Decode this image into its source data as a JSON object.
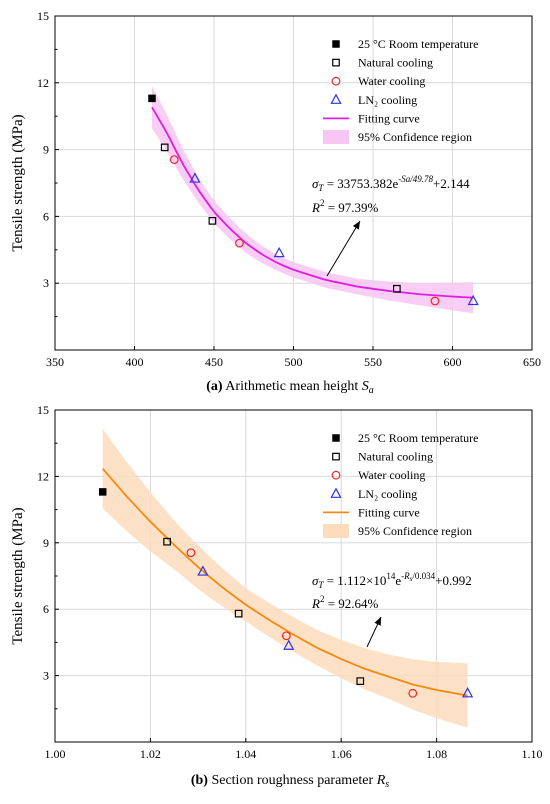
{
  "colors": {
    "room": "#000000",
    "natural": "#000000",
    "water": "#e8272a",
    "ln2": "#2b35e0",
    "fit_a": "#e11de3",
    "band_a": "#f7c6f2",
    "fit_b": "#f28a12",
    "band_b": "#fbdcbc",
    "grid": "#d9d9d9"
  },
  "chart_data": [
    {
      "type": "scatter",
      "panel_label": "(a)",
      "caption": "Arithmetic mean height",
      "caption_symbol": "S",
      "caption_subscript": "a",
      "ylabel": "Tensile strength (MPa)",
      "xlabel": "",
      "xlim": [
        350,
        650
      ],
      "ylim": [
        0,
        15
      ],
      "xticks": [
        350,
        400,
        450,
        500,
        550,
        600,
        650
      ],
      "yticks": [
        3,
        6,
        9,
        12,
        15
      ],
      "grid": true,
      "legend_position": "top-right",
      "series": [
        {
          "name": "25 °C Room temperature",
          "marker": "filled-square",
          "points": [
            [
              411,
              11.3
            ]
          ]
        },
        {
          "name": "Natural cooling",
          "marker": "open-square",
          "points": [
            [
              419,
              9.1
            ],
            [
              449,
              5.8
            ],
            [
              565,
              2.75
            ]
          ]
        },
        {
          "name": "Water cooling",
          "marker": "open-circle",
          "points": [
            [
              425,
              8.55
            ],
            [
              466,
              4.8
            ],
            [
              589,
              2.2
            ]
          ]
        },
        {
          "name": "LN₂ cooling",
          "marker": "open-triangle",
          "points": [
            [
              438,
              7.7
            ],
            [
              491,
              4.35
            ],
            [
              613,
              2.2
            ]
          ]
        }
      ],
      "fit": {
        "name": "Fitting curve",
        "band_name": "95% Confidence region",
        "x_range": [
          411,
          613
        ],
        "points": [
          [
            411,
            10.9
          ],
          [
            420,
            9.8
          ],
          [
            430,
            8.4
          ],
          [
            440,
            7.2
          ],
          [
            450,
            6.2
          ],
          [
            460,
            5.45
          ],
          [
            470,
            4.8
          ],
          [
            480,
            4.3
          ],
          [
            490,
            3.9
          ],
          [
            500,
            3.6
          ],
          [
            520,
            3.15
          ],
          [
            540,
            2.85
          ],
          [
            560,
            2.65
          ],
          [
            580,
            2.5
          ],
          [
            600,
            2.4
          ],
          [
            613,
            2.35
          ]
        ],
        "band_halfwidth": [
          [
            411,
            0.95
          ],
          [
            440,
            0.55
          ],
          [
            490,
            0.35
          ],
          [
            540,
            0.35
          ],
          [
            580,
            0.5
          ],
          [
            613,
            0.7
          ]
        ],
        "equation_text": "σ",
        "equation_sub": "T",
        "equation_rest": " = 33753.382e",
        "equation_sup": "-Sa/49.78",
        "equation_tail": "+2.144",
        "r2_label": "R",
        "r2_sup": "2",
        "r2_value": " = 97.39%"
      }
    },
    {
      "type": "scatter",
      "panel_label": "(b)",
      "caption": "Section roughness parameter",
      "caption_symbol": "R",
      "caption_subscript": "s",
      "ylabel": "Tensile strength (MPa)",
      "xlabel": "",
      "xlim": [
        1.0,
        1.1
      ],
      "ylim": [
        0,
        15
      ],
      "xticks": [
        "1.00",
        "1.02",
        "1.04",
        "1.06",
        "1.08",
        "1.10"
      ],
      "yticks": [
        3,
        6,
        9,
        12,
        15
      ],
      "grid": true,
      "legend_position": "top-right",
      "series": [
        {
          "name": "25 °C Room temperature",
          "marker": "filled-square",
          "points": [
            [
              1.01,
              11.3
            ]
          ]
        },
        {
          "name": "Natural cooling",
          "marker": "open-square",
          "points": [
            [
              1.0235,
              9.05
            ],
            [
              1.0385,
              5.8
            ],
            [
              1.064,
              2.75
            ]
          ]
        },
        {
          "name": "Water cooling",
          "marker": "open-circle",
          "points": [
            [
              1.0285,
              8.55
            ],
            [
              1.0485,
              4.8
            ],
            [
              1.075,
              2.2
            ]
          ]
        },
        {
          "name": "LN₂ cooling",
          "marker": "open-triangle",
          "points": [
            [
              1.031,
              7.7
            ],
            [
              1.049,
              4.35
            ],
            [
              1.0865,
              2.2
            ]
          ]
        }
      ],
      "fit": {
        "name": "Fitting curve",
        "band_name": "95% Confidence region",
        "x_range": [
          1.01,
          1.0865
        ],
        "points": [
          [
            1.01,
            12.35
          ],
          [
            1.015,
            11.1
          ],
          [
            1.02,
            9.95
          ],
          [
            1.025,
            8.9
          ],
          [
            1.03,
            7.9
          ],
          [
            1.035,
            7.0
          ],
          [
            1.04,
            6.2
          ],
          [
            1.045,
            5.5
          ],
          [
            1.05,
            4.85
          ],
          [
            1.055,
            4.25
          ],
          [
            1.06,
            3.75
          ],
          [
            1.065,
            3.3
          ],
          [
            1.07,
            2.95
          ],
          [
            1.075,
            2.6
          ],
          [
            1.08,
            2.35
          ],
          [
            1.0865,
            2.1
          ]
        ],
        "band_halfwidth": [
          [
            1.01,
            1.8
          ],
          [
            1.025,
            1.1
          ],
          [
            1.04,
            0.75
          ],
          [
            1.055,
            0.8
          ],
          [
            1.07,
            1.0
          ],
          [
            1.0865,
            1.45
          ]
        ],
        "equation_text": "σ",
        "equation_sub": "T",
        "equation_rest": " = 1.112×10",
        "equation_sup14": "14",
        "equation_e": "e",
        "equation_sup": "-R",
        "equation_supsub": "s",
        "equation_sup2": "/0.034",
        "equation_tail": "+0.992",
        "r2_label": "R",
        "r2_sup": "2",
        "r2_value": " = 92.64%"
      }
    }
  ]
}
